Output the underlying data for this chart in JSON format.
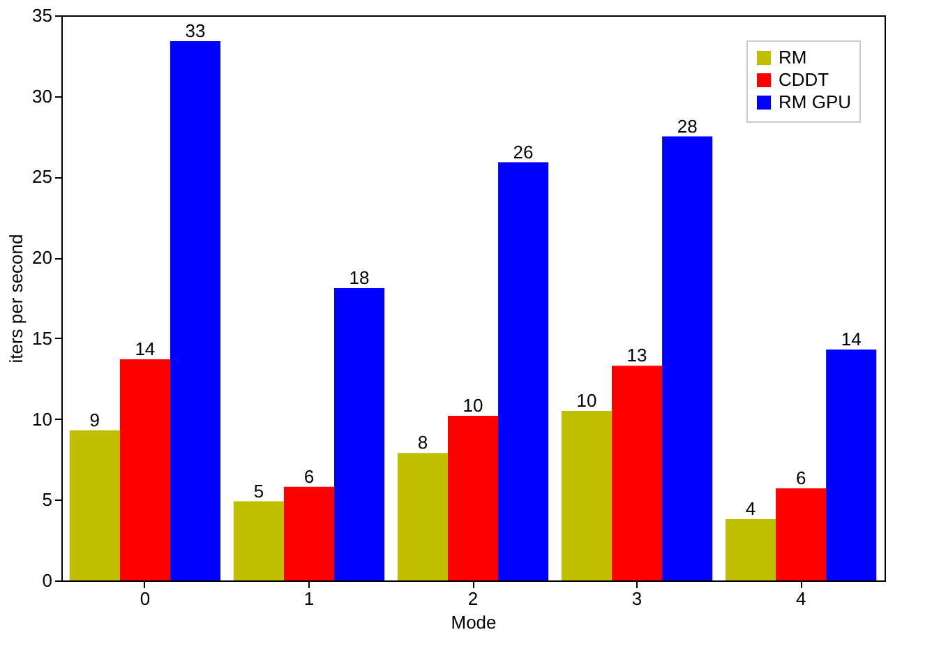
{
  "chart_data": {
    "type": "bar",
    "xlabel": "Mode",
    "ylabel": "iters per second",
    "categories": [
      "0",
      "1",
      "2",
      "3",
      "4"
    ],
    "series": [
      {
        "name": "RM",
        "color": "#bfbf00",
        "values": [
          9.3,
          4.9,
          7.9,
          10.5,
          3.8
        ],
        "value_labels": [
          "9",
          "5",
          "8",
          "10",
          "4"
        ]
      },
      {
        "name": "CDDT",
        "color": "#ff0000",
        "values": [
          13.7,
          5.8,
          10.2,
          13.3,
          5.7
        ],
        "value_labels": [
          "14",
          "6",
          "10",
          "13",
          "6"
        ]
      },
      {
        "name": "RM GPU",
        "color": "#0000ff",
        "values": [
          33.4,
          18.1,
          25.9,
          27.5,
          14.3
        ],
        "value_labels": [
          "33",
          "18",
          "26",
          "28",
          "14"
        ]
      }
    ],
    "ylim": [
      0,
      35
    ],
    "yticks": [
      0,
      5,
      10,
      15,
      20,
      25,
      30,
      35
    ],
    "grid": false,
    "legend": "top right"
  }
}
